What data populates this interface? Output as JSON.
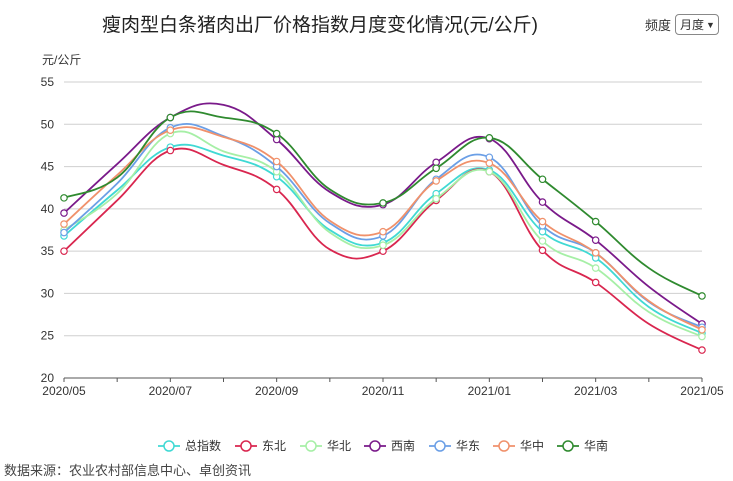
{
  "title": "瘦肉型白条猪肉出厂价格指数月度变化情况(元/公斤)",
  "frequency": {
    "label": "频度",
    "selected": "月度",
    "icon": "chevron-down-icon"
  },
  "source": "数据来源：农业农村部信息中心、卓创资讯",
  "chart_data": {
    "type": "line",
    "ylabel": "元/公斤",
    "ylim": [
      20,
      55
    ],
    "yticks": [
      20,
      25,
      30,
      35,
      40,
      45,
      50,
      55
    ],
    "x": [
      "2020/05",
      "2020/06",
      "2020/07",
      "2020/08",
      "2020/09",
      "2020/10",
      "2020/11",
      "2020/12",
      "2021/01",
      "2021/02",
      "2021/03",
      "2021/04",
      "2021/05"
    ],
    "xtick_labels": [
      "2020/05",
      "2020/07",
      "2020/09",
      "2020/11",
      "2021/01",
      "2021/03",
      "2021/05"
    ],
    "grid": true,
    "legend_position": "bottom",
    "series": [
      {
        "name": "总指数",
        "color": "#40d9d4",
        "values": [
          36.8,
          42.2,
          47.3,
          46.3,
          43.8,
          37.5,
          36.0,
          41.8,
          44.6,
          37.3,
          34.2,
          28.4,
          25.3
        ]
      },
      {
        "name": "东北",
        "color": "#d9264f",
        "values": [
          35.0,
          41.0,
          46.9,
          45.2,
          42.3,
          35.2,
          35.0,
          41.0,
          44.4,
          35.1,
          31.3,
          26.4,
          23.3
        ]
      },
      {
        "name": "华北",
        "color": "#a6efa6",
        "values": [
          37.5,
          41.8,
          48.9,
          46.8,
          44.4,
          37.2,
          35.7,
          41.2,
          44.4,
          36.2,
          33.0,
          27.8,
          24.9
        ]
      },
      {
        "name": "西南",
        "color": "#7a1a8a",
        "values": [
          39.5,
          45.3,
          50.8,
          52.3,
          48.2,
          42.0,
          40.5,
          45.5,
          48.3,
          40.8,
          36.3,
          30.8,
          26.4
        ]
      },
      {
        "name": "华东",
        "color": "#6b9fe6",
        "values": [
          37.2,
          43.0,
          49.6,
          48.6,
          45.0,
          38.3,
          36.8,
          43.5,
          46.1,
          38.0,
          34.8,
          29.0,
          26.0
        ]
      },
      {
        "name": "华中",
        "color": "#f0916b",
        "values": [
          38.2,
          44.0,
          49.3,
          48.5,
          45.6,
          38.6,
          37.3,
          43.3,
          45.4,
          38.5,
          34.8,
          29.1,
          25.7
        ]
      },
      {
        "name": "华南",
        "color": "#2f8a2f",
        "values": [
          41.3,
          43.7,
          50.8,
          50.8,
          48.9,
          42.3,
          40.7,
          44.8,
          48.4,
          43.5,
          38.5,
          33.0,
          29.7
        ]
      }
    ]
  }
}
